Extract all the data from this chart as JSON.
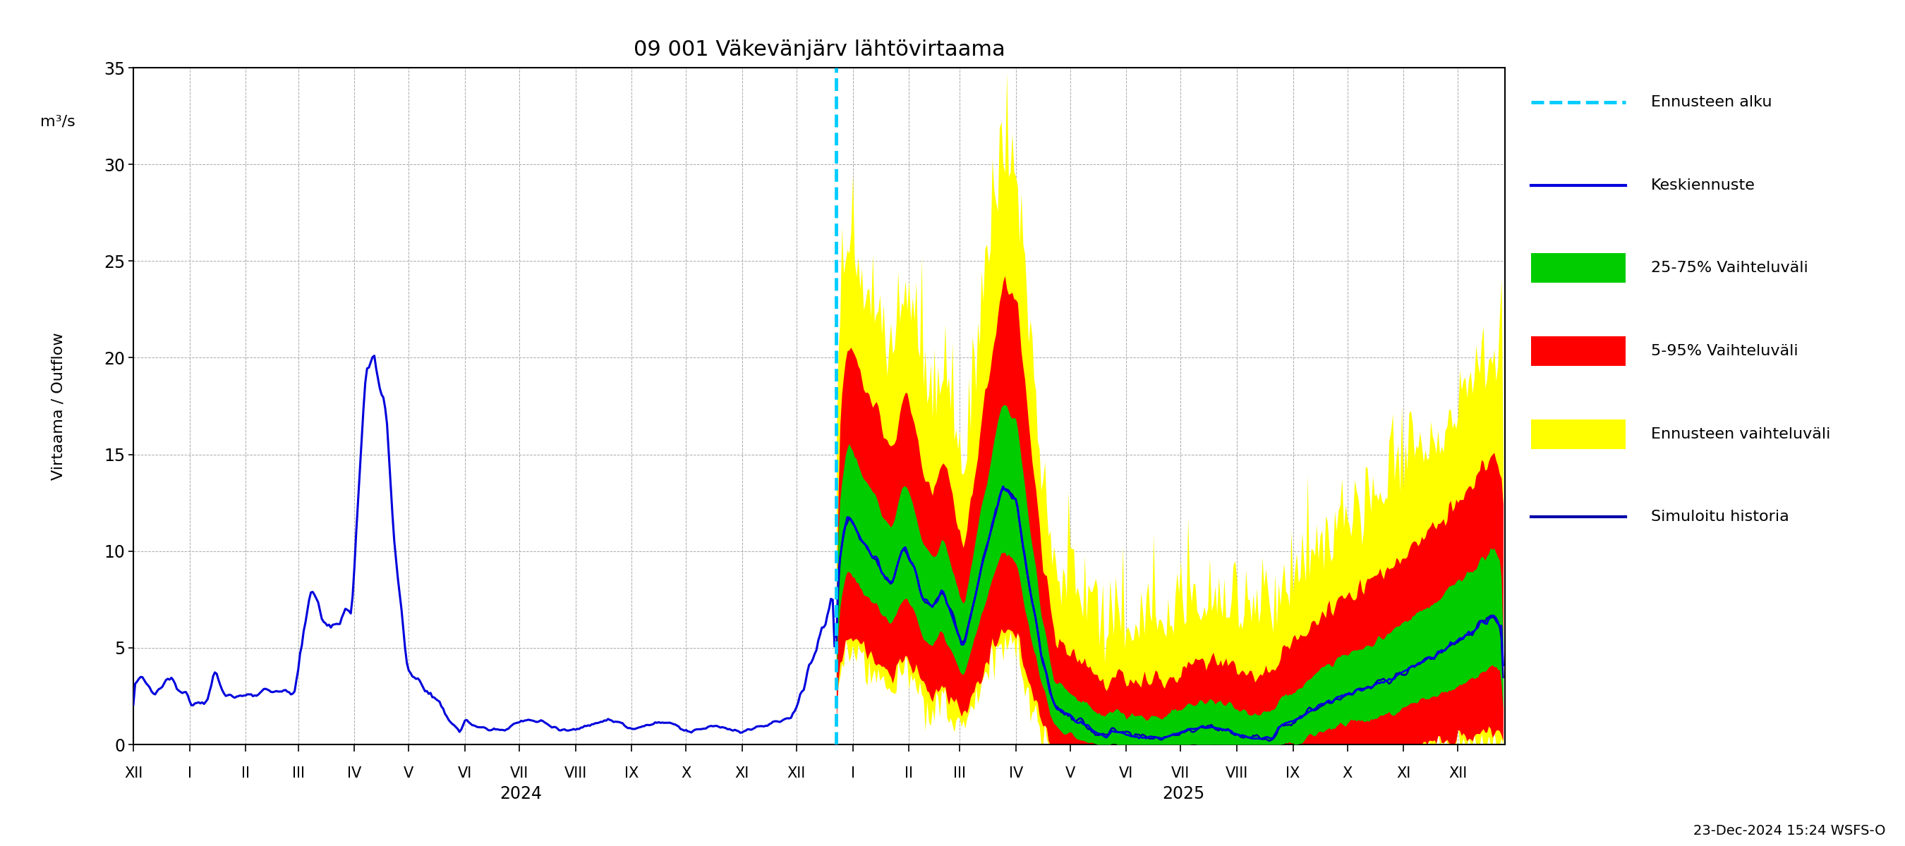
{
  "title": "09 001 Väkevänjärv lähtövirtaama",
  "footnote": "23-Dec-2024 15:24 WSFS-O",
  "ylim": [
    0,
    35
  ],
  "yticks": [
    0,
    5,
    10,
    15,
    20,
    25,
    30,
    35
  ],
  "colors": {
    "history_line": "#0000dd",
    "median_line": "#0000dd",
    "band_25_75": "#00cc00",
    "band_5_95": "#ff0000",
    "band_ennuste": "#ffff00",
    "forecast_start_line": "#00ccff",
    "sim_historia": "#0000aa"
  },
  "legend_labels": [
    "Ennusteen alku",
    "Keskiennuste",
    "25-75% Vaihteluväli",
    "5-95% Vaihteluväli",
    "Ennusteen vaihteluväli",
    "Simuloitu historia"
  ],
  "x_month_labels": [
    "XII",
    "I",
    "II",
    "III",
    "IV",
    "V",
    "VI",
    "VII",
    "VIII",
    "IX",
    "X",
    "XI",
    "XII",
    "I",
    "II",
    "III",
    "IV",
    "V",
    "VI",
    "VII",
    "VIII",
    "IX",
    "X",
    "XI",
    "XII"
  ],
  "month_lengths": [
    31,
    31,
    29,
    31,
    30,
    31,
    30,
    31,
    31,
    30,
    31,
    30,
    31,
    31,
    28,
    31,
    30,
    31,
    30,
    31,
    31,
    30,
    31,
    30,
    31
  ],
  "forecast_day": 388,
  "n_total": 757,
  "ylabel_top": "m³/s",
  "ylabel_bottom": "Virtaama / Outflow"
}
